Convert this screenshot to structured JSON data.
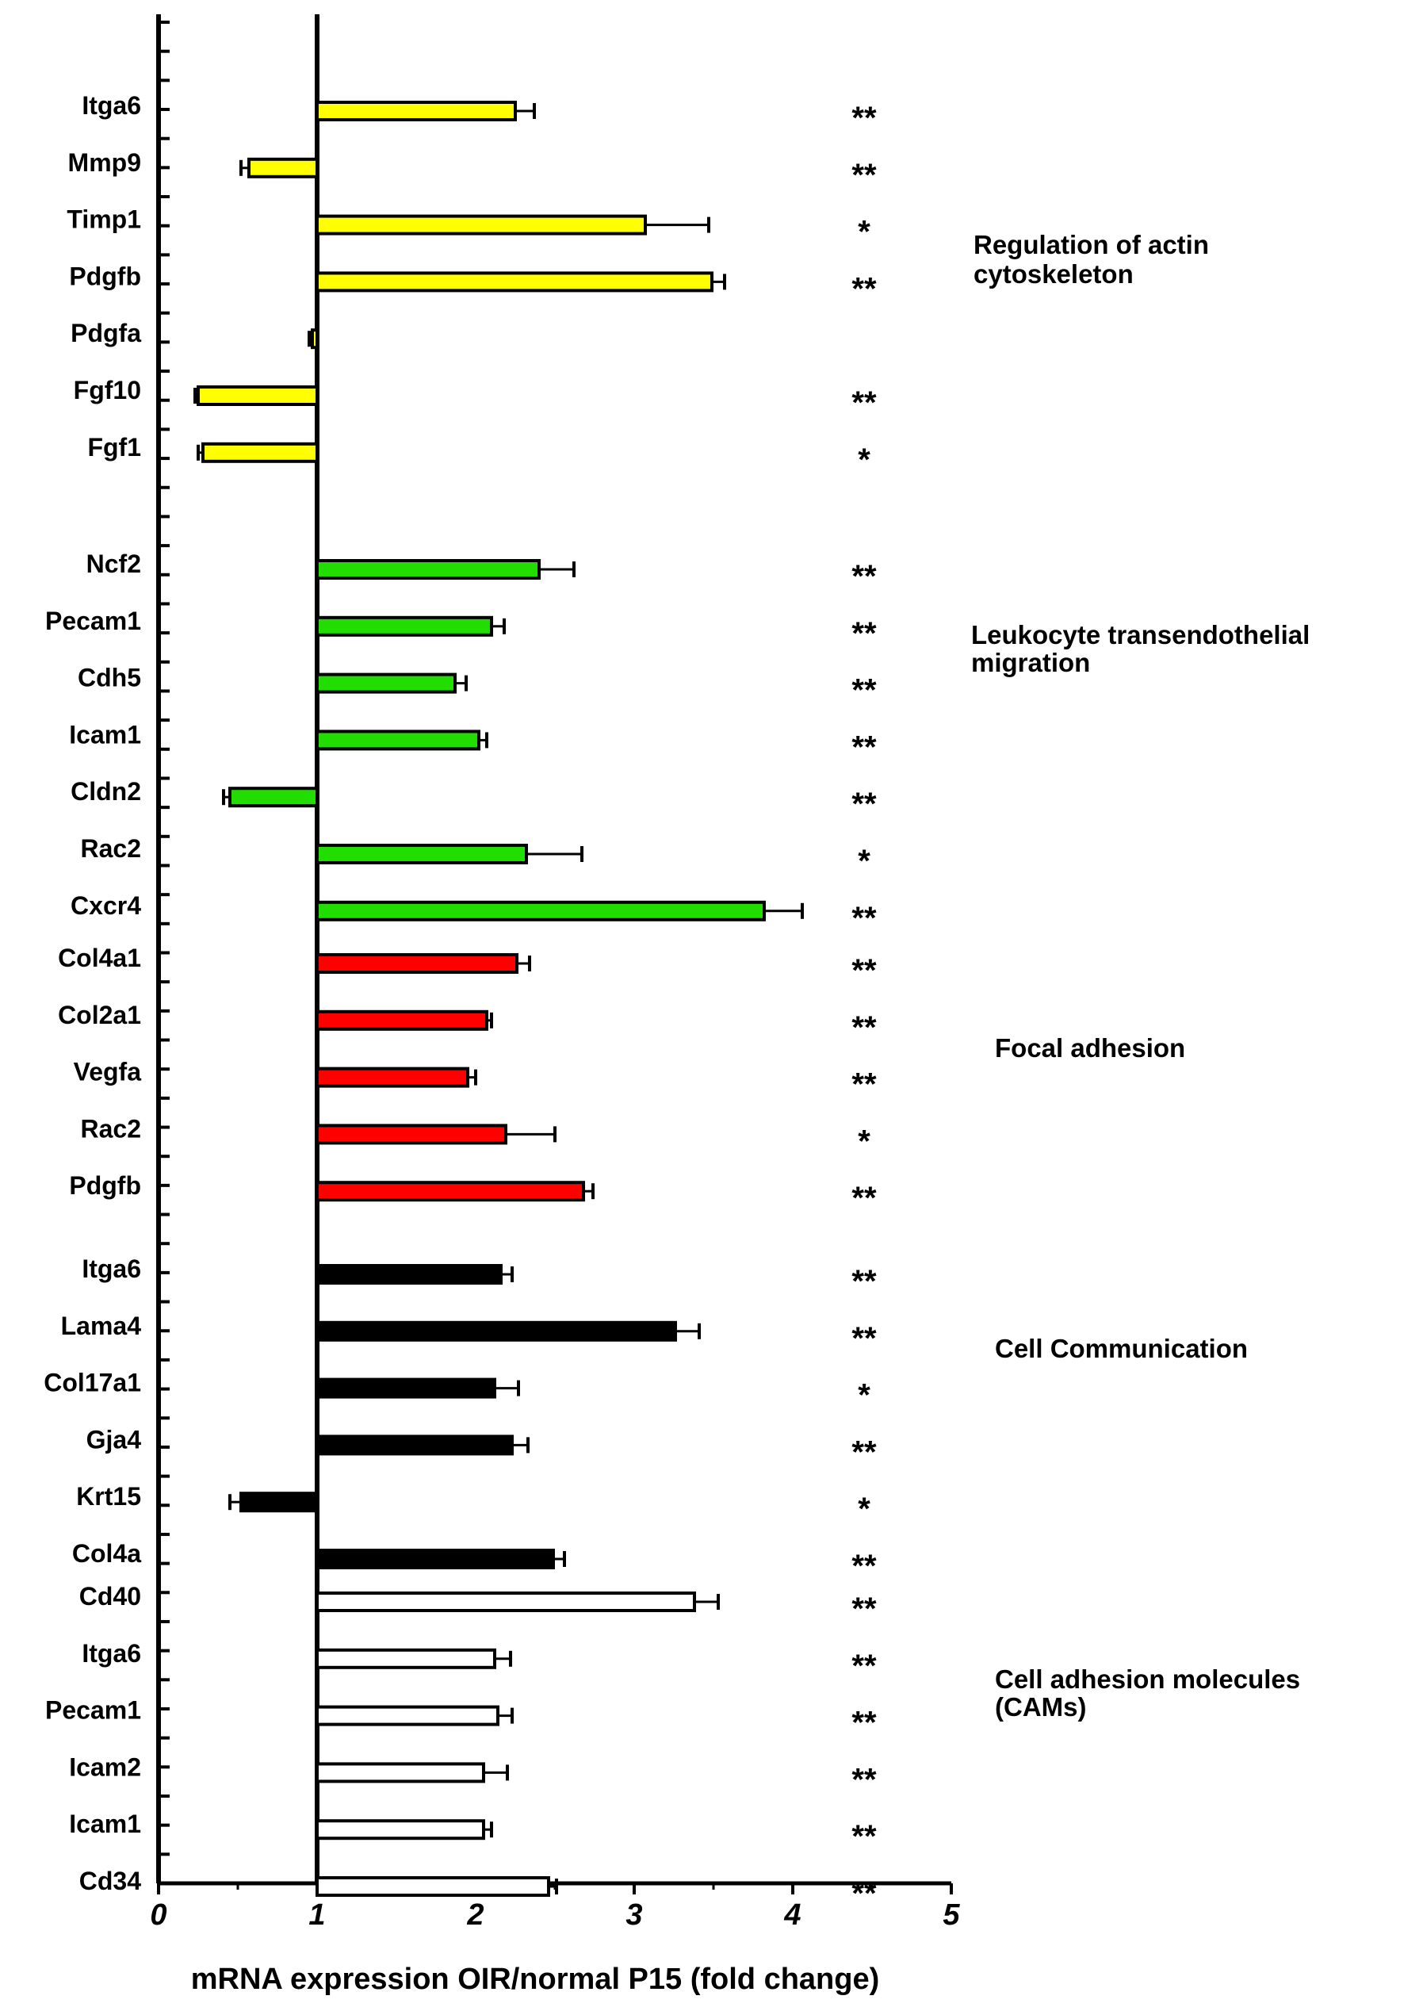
{
  "chart_data": {
    "type": "bar",
    "orientation": "horizontal",
    "xlabel": "mRNA expression OIR/normal P15 (fold change)",
    "xlim": [
      0,
      5
    ],
    "x_ticks": [
      "0",
      "1",
      "2",
      "3",
      "4",
      "5"
    ],
    "baseline": 1,
    "grid": false,
    "groups": [
      {
        "name": "Regulation of actin cytoskeleton",
        "label_lines": [
          "Regulation of actin",
          "cytoskeleton"
        ],
        "color": "#ffff00",
        "items": [
          {
            "gene": "Itga6",
            "value": 2.25,
            "error": 0.12,
            "sig": "**"
          },
          {
            "gene": "Mmp9",
            "value": 0.57,
            "error": 0.05,
            "sig": "**"
          },
          {
            "gene": "Timp1",
            "value": 3.07,
            "error": 0.4,
            "sig": "*"
          },
          {
            "gene": "Pdgfb",
            "value": 3.49,
            "error": 0.08,
            "sig": "**"
          },
          {
            "gene": "Pdgfa",
            "value": 0.97,
            "error": 0.02,
            "sig": ""
          },
          {
            "gene": "Fgf10",
            "value": 0.25,
            "error": 0.02,
            "sig": "**"
          },
          {
            "gene": "Fgf1",
            "value": 0.28,
            "error": 0.03,
            "sig": "*"
          }
        ]
      },
      {
        "name": "Leukocyte transendothelial migration",
        "label_lines": [
          "Leukocyte transendothelial",
          "migration"
        ],
        "color": "#22dd00",
        "items": [
          {
            "gene": "Ncf2",
            "value": 2.4,
            "error": 0.22,
            "sig": "**"
          },
          {
            "gene": "Pecam1",
            "value": 2.1,
            "error": 0.08,
            "sig": "**"
          },
          {
            "gene": "Cdh5",
            "value": 1.87,
            "error": 0.07,
            "sig": "**"
          },
          {
            "gene": "Icam1",
            "value": 2.02,
            "error": 0.05,
            "sig": "**"
          },
          {
            "gene": "Cldn2",
            "value": 0.45,
            "error": 0.04,
            "sig": "**"
          },
          {
            "gene": "Rac2",
            "value": 2.32,
            "error": 0.35,
            "sig": "*"
          },
          {
            "gene": "Cxcr4",
            "value": 3.82,
            "error": 0.24,
            "sig": "**"
          }
        ]
      },
      {
        "name": "Focal adhesion",
        "label_lines": [
          "Focal adhesion"
        ],
        "color": "#ff0000",
        "items": [
          {
            "gene": "Col4a1",
            "value": 2.26,
            "error": 0.08,
            "sig": "**"
          },
          {
            "gene": "Col2a1",
            "value": 2.07,
            "error": 0.03,
            "sig": "**"
          },
          {
            "gene": "Vegfa",
            "value": 1.95,
            "error": 0.05,
            "sig": "**"
          },
          {
            "gene": "Rac2",
            "value": 2.19,
            "error": 0.31,
            "sig": "*"
          },
          {
            "gene": "Pdgfb",
            "value": 2.68,
            "error": 0.06,
            "sig": "**"
          }
        ]
      },
      {
        "name": "Cell Communication",
        "label_lines": [
          "Cell Communication"
        ],
        "color": "#000000",
        "items": [
          {
            "gene": "Itga6",
            "value": 2.16,
            "error": 0.07,
            "sig": "**"
          },
          {
            "gene": "Lama4",
            "value": 3.26,
            "error": 0.15,
            "sig": "**"
          },
          {
            "gene": "Col17a1",
            "value": 2.12,
            "error": 0.15,
            "sig": "*"
          },
          {
            "gene": "Gja4",
            "value": 2.23,
            "error": 0.1,
            "sig": "**"
          },
          {
            "gene": "Krt15",
            "value": 0.52,
            "error": 0.07,
            "sig": "*"
          },
          {
            "gene": "Col4a",
            "value": 2.49,
            "error": 0.07,
            "sig": "**"
          }
        ]
      },
      {
        "name": "Cell adhesion molecules (CAMs)",
        "label_lines": [
          "Cell adhesion molecules",
          "(CAMs)"
        ],
        "color": "#ffffff",
        "items": [
          {
            "gene": "Cd40",
            "value": 3.38,
            "error": 0.15,
            "sig": "**"
          },
          {
            "gene": "Itga6",
            "value": 2.12,
            "error": 0.1,
            "sig": "**"
          },
          {
            "gene": "Pecam1",
            "value": 2.14,
            "error": 0.09,
            "sig": "**"
          },
          {
            "gene": "Icam2",
            "value": 2.05,
            "error": 0.15,
            "sig": "**"
          },
          {
            "gene": "Icam1",
            "value": 2.05,
            "error": 0.05,
            "sig": "**"
          },
          {
            "gene": "Cd34",
            "value": 2.46,
            "error": 0.05,
            "sig": "**"
          }
        ]
      }
    ]
  }
}
